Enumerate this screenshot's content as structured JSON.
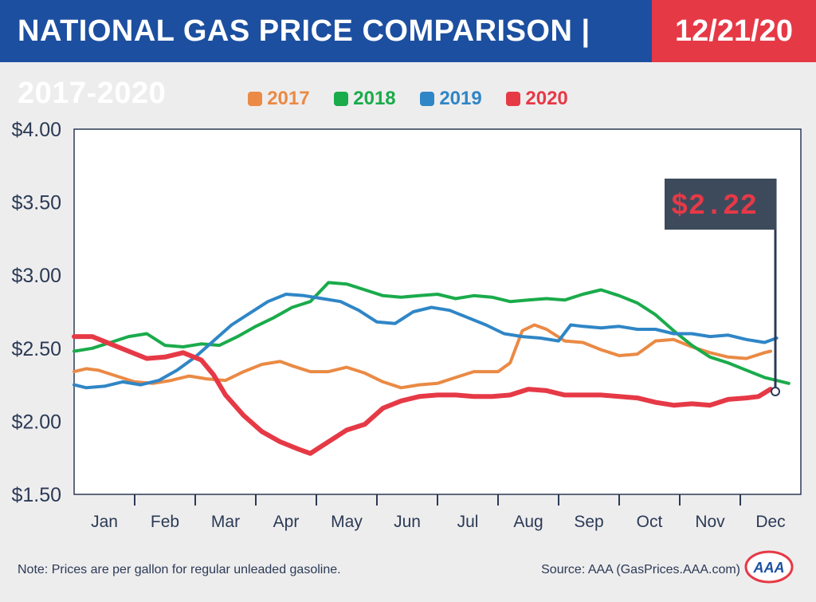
{
  "header": {
    "title": "NATIONAL GAS PRICE COMPARISON | 2017-2020",
    "date": "12/21/20"
  },
  "colors": {
    "title_bg": "#1c4fa0",
    "date_bg": "#e63946",
    "2017": "#ea8a45",
    "2018": "#1aab4b",
    "2019": "#2f86c6",
    "2020": "#e63946"
  },
  "price_tag": "$2.22",
  "footer": {
    "note": "Note: Prices are per gallon for regular unleaded gasoline.",
    "source": "Source: AAA (GasPrices.AAA.com)",
    "logo_text": "AAA"
  },
  "chart_data": {
    "type": "line",
    "title": "NATIONAL GAS PRICE COMPARISON | 2017-2020",
    "xlabel": "",
    "ylabel": "",
    "ylim": [
      1.5,
      4.0
    ],
    "yticks": [
      "$4.00",
      "$3.50",
      "$3.00",
      "$2.50",
      "$2.00",
      "$1.50"
    ],
    "ytick_values": [
      4.0,
      3.5,
      3.0,
      2.5,
      2.0,
      1.5
    ],
    "categories": [
      "Jan",
      "Feb",
      "Mar",
      "Apr",
      "May",
      "Jun",
      "Jul",
      "Aug",
      "Sep",
      "Oct",
      "Nov",
      "Dec"
    ],
    "x_range": [
      0,
      12
    ],
    "grid": false,
    "legend_position": "top",
    "series": [
      {
        "name": "2017",
        "x": [
          0.0,
          0.2,
          0.4,
          0.7,
          1.0,
          1.3,
          1.6,
          1.9,
          2.2,
          2.5,
          2.8,
          3.1,
          3.4,
          3.6,
          3.9,
          4.2,
          4.5,
          4.8,
          5.1,
          5.4,
          5.7,
          6.0,
          6.3,
          6.6,
          6.8,
          7.0,
          7.2,
          7.4,
          7.6,
          7.8,
          8.1,
          8.4,
          8.7,
          9.0,
          9.3,
          9.6,
          9.9,
          10.2,
          10.5,
          10.8,
          11.1,
          11.4,
          11.5
        ],
        "values": [
          2.34,
          2.36,
          2.35,
          2.31,
          2.27,
          2.26,
          2.28,
          2.31,
          2.29,
          2.28,
          2.34,
          2.39,
          2.41,
          2.38,
          2.34,
          2.34,
          2.37,
          2.33,
          2.27,
          2.23,
          2.25,
          2.26,
          2.3,
          2.34,
          2.34,
          2.34,
          2.4,
          2.62,
          2.66,
          2.63,
          2.55,
          2.54,
          2.49,
          2.45,
          2.46,
          2.55,
          2.56,
          2.51,
          2.47,
          2.44,
          2.43,
          2.47,
          2.48
        ]
      },
      {
        "name": "2018",
        "x": [
          0.0,
          0.3,
          0.6,
          0.9,
          1.2,
          1.5,
          1.8,
          2.1,
          2.4,
          2.7,
          3.0,
          3.3,
          3.6,
          3.9,
          4.2,
          4.5,
          4.8,
          5.1,
          5.4,
          5.7,
          6.0,
          6.3,
          6.6,
          6.9,
          7.2,
          7.5,
          7.8,
          8.1,
          8.4,
          8.7,
          9.0,
          9.3,
          9.6,
          9.9,
          10.2,
          10.5,
          10.8,
          11.1,
          11.4,
          11.8
        ],
        "values": [
          2.48,
          2.5,
          2.54,
          2.58,
          2.6,
          2.52,
          2.51,
          2.53,
          2.52,
          2.58,
          2.65,
          2.71,
          2.78,
          2.82,
          2.95,
          2.94,
          2.9,
          2.86,
          2.85,
          2.86,
          2.87,
          2.84,
          2.86,
          2.85,
          2.82,
          2.83,
          2.84,
          2.83,
          2.87,
          2.9,
          2.86,
          2.81,
          2.73,
          2.62,
          2.52,
          2.44,
          2.4,
          2.35,
          2.3,
          2.26
        ]
      },
      {
        "name": "2019",
        "x": [
          0.0,
          0.2,
          0.5,
          0.8,
          1.1,
          1.4,
          1.7,
          2.0,
          2.3,
          2.6,
          2.9,
          3.2,
          3.5,
          3.8,
          4.1,
          4.4,
          4.7,
          5.0,
          5.3,
          5.6,
          5.9,
          6.2,
          6.5,
          6.8,
          7.1,
          7.4,
          7.7,
          8.0,
          8.2,
          8.4,
          8.7,
          9.0,
          9.3,
          9.6,
          9.9,
          10.2,
          10.5,
          10.8,
          11.1,
          11.4,
          11.6
        ],
        "values": [
          2.25,
          2.23,
          2.24,
          2.27,
          2.25,
          2.28,
          2.35,
          2.44,
          2.55,
          2.66,
          2.74,
          2.82,
          2.87,
          2.86,
          2.84,
          2.82,
          2.76,
          2.68,
          2.67,
          2.75,
          2.78,
          2.76,
          2.71,
          2.66,
          2.6,
          2.58,
          2.57,
          2.55,
          2.66,
          2.65,
          2.64,
          2.65,
          2.63,
          2.63,
          2.6,
          2.6,
          2.58,
          2.59,
          2.56,
          2.54,
          2.57
        ]
      },
      {
        "name": "2020",
        "x": [
          0.0,
          0.3,
          0.6,
          0.9,
          1.2,
          1.5,
          1.8,
          2.1,
          2.3,
          2.5,
          2.8,
          3.1,
          3.4,
          3.7,
          3.9,
          4.2,
          4.5,
          4.8,
          5.1,
          5.4,
          5.7,
          6.0,
          6.3,
          6.6,
          6.9,
          7.2,
          7.5,
          7.8,
          8.1,
          8.4,
          8.7,
          9.0,
          9.3,
          9.6,
          9.9,
          10.2,
          10.5,
          10.8,
          11.1,
          11.3,
          11.5
        ],
        "values": [
          2.58,
          2.58,
          2.53,
          2.48,
          2.43,
          2.44,
          2.47,
          2.42,
          2.32,
          2.18,
          2.04,
          1.93,
          1.86,
          1.81,
          1.78,
          1.86,
          1.94,
          1.98,
          2.09,
          2.14,
          2.17,
          2.18,
          2.18,
          2.17,
          2.17,
          2.18,
          2.22,
          2.21,
          2.18,
          2.18,
          2.18,
          2.17,
          2.16,
          2.13,
          2.11,
          2.12,
          2.11,
          2.15,
          2.16,
          2.17,
          2.22
        ]
      }
    ]
  }
}
